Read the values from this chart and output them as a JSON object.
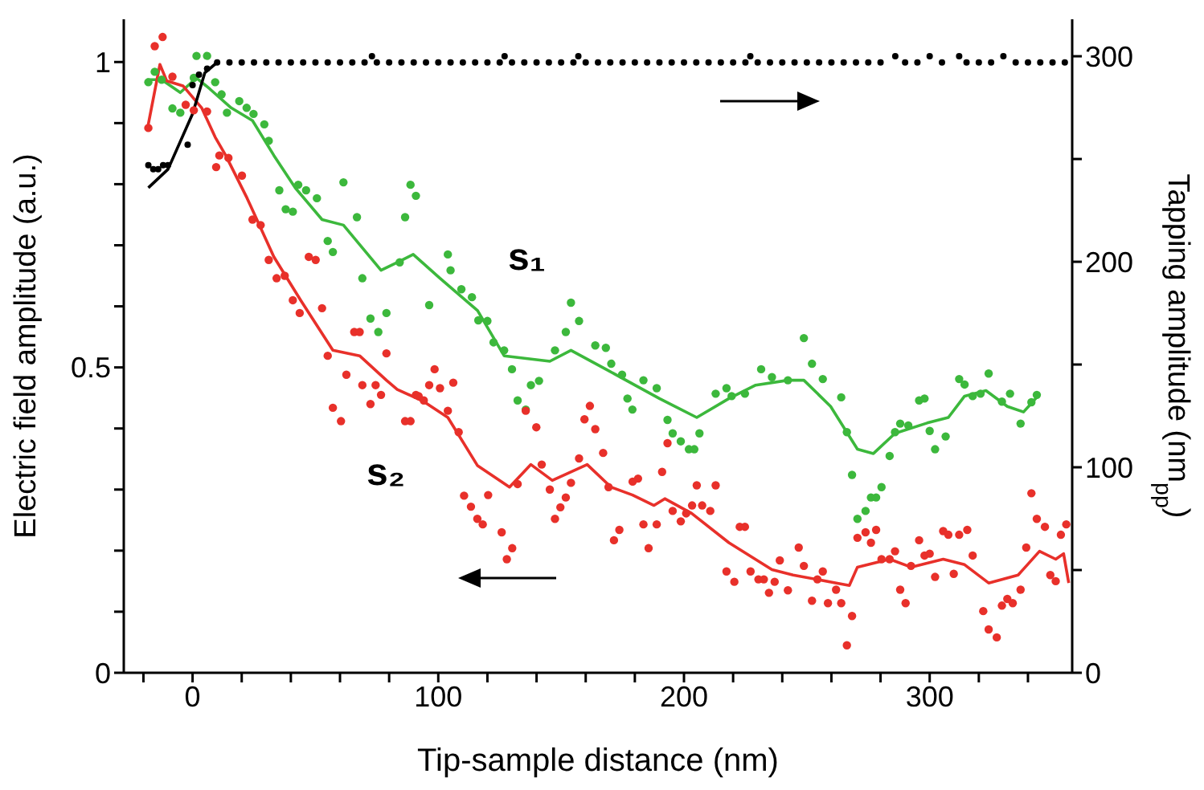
{
  "chart_data": {
    "type": "scatter",
    "xlabel": "Tip-sample distance (nm)",
    "ylabel": "Electric field amplitude (a.u.)",
    "y2label": "Tapping amplitude (nm$_{pp}$)",
    "xlim": [
      -28,
      358
    ],
    "xticks": [
      {
        "value": -20,
        "label": null
      },
      0,
      {
        "value": 20,
        "label": null
      },
      {
        "value": 40,
        "label": null
      },
      {
        "value": 60,
        "label": null
      },
      {
        "value": 80,
        "label": null
      },
      100,
      {
        "value": 120,
        "label": null
      },
      {
        "value": 140,
        "label": null
      },
      {
        "value": 160,
        "label": null
      },
      {
        "value": 180,
        "label": null
      },
      200,
      {
        "value": 220,
        "label": null
      },
      {
        "value": 240,
        "label": null
      },
      {
        "value": 260,
        "label": null
      },
      {
        "value": 280,
        "label": null
      },
      300,
      {
        "value": 320,
        "label": null
      },
      {
        "value": 340,
        "label": null
      }
    ],
    "ylim": [
      0,
      1.07
    ],
    "yticks": [
      0,
      {
        "value": 0.1,
        "label": null
      },
      {
        "value": 0.2,
        "label": null
      },
      {
        "value": 0.3,
        "label": null
      },
      {
        "value": 0.4,
        "label": null
      },
      0.5,
      {
        "value": 0.6,
        "label": null
      },
      {
        "value": 0.7,
        "label": null
      },
      {
        "value": 0.8,
        "label": null
      },
      {
        "value": 0.9,
        "label": null
      },
      1
    ],
    "y2lim": [
      0,
      318
    ],
    "y2ticks": [
      0,
      {
        "value": 50,
        "label": null
      },
      100,
      {
        "value": 150,
        "label": null
      },
      200,
      {
        "value": 250,
        "label": null
      },
      300
    ],
    "marker": "circle",
    "series": [
      {
        "name": "s₁",
        "color": "#3cb83c",
        "x": [
          -18,
          -15.4,
          -12.6,
          -8.2,
          -5,
          0.5,
          1.6,
          5.9,
          9.2,
          11.8,
          14,
          19,
          22,
          24.8,
          29.2,
          31,
          35.3,
          37.9,
          40.8,
          43,
          46.2,
          50.6,
          55,
          57.1,
          61.4,
          66.9,
          69.1,
          72.4,
          75.6,
          78.9,
          84.3,
          86.5,
          88.7,
          90.9,
          96.3,
          103.9,
          105,
          109.4,
          113.7,
          116.3,
          120,
          122.5,
          126.8,
          130,
          132.3,
          135.6,
          137.7,
          141,
          147.5,
          151.9,
          154,
          157.3,
          163.9,
          168.2,
          170.4,
          174.8,
          177,
          179,
          183.5,
          188.9,
          193.3,
          195.4,
          198.7,
          202,
          204.2,
          206.3,
          212.9,
          217.3,
          219.4,
          224.8,
          231.4,
          235.8,
          242.3,
          248.8,
          252.1,
          256.5,
          264,
          266.3,
          268.4,
          270.6,
          273.9,
          276.1,
          278.2,
          280.4,
          283.7,
          285.9,
          288,
          291.3,
          295.7,
          297.9,
          300,
          302.2,
          306.5,
          312,
          314.2,
          317.5,
          320.7,
          324,
          329.4,
          332.7,
          337,
          341.4,
          343.6
        ],
        "values": [
          0.967,
          0.984,
          0.971,
          0.924,
          0.917,
          0.974,
          1.01,
          1.01,
          0.967,
          0.947,
          0.917,
          0.936,
          0.925,
          0.915,
          0.898,
          0.871,
          0.79,
          0.759,
          0.755,
          0.799,
          0.79,
          0.777,
          0.707,
          0.689,
          0.803,
          0.746,
          0.646,
          0.58,
          0.558,
          0.589,
          0.672,
          0.746,
          0.799,
          0.781,
          0.602,
          0.685,
          0.659,
          0.628,
          0.615,
          0.577,
          0.576,
          0.541,
          0.528,
          0.497,
          0.446,
          0.431,
          0.471,
          0.478,
          0.528,
          0.558,
          0.606,
          0.576,
          0.536,
          0.532,
          0.506,
          0.488,
          0.449,
          0.431,
          0.479,
          0.466,
          0.414,
          0.392,
          0.379,
          0.366,
          0.366,
          0.392,
          0.457,
          0.466,
          0.453,
          0.457,
          0.497,
          0.484,
          0.479,
          0.548,
          0.506,
          0.481,
          0.451,
          0.394,
          0.324,
          0.252,
          0.265,
          0.287,
          0.287,
          0.304,
          0.355,
          0.394,
          0.408,
          0.405,
          0.446,
          0.449,
          0.396,
          0.366,
          0.387,
          0.481,
          0.472,
          0.453,
          0.457,
          0.49,
          0.444,
          0.457,
          0.408,
          0.443,
          0.455
        ]
      },
      {
        "type": "line",
        "color": "#3cb83c",
        "marker": "none",
        "x": [
          -18.6,
          -12.6,
          -5,
          1.6,
          7,
          15.7,
          24.4,
          33.1,
          41.8,
          52.7,
          61.4,
          76.7,
          83.3,
          89.8,
          100.7,
          116,
          126.8,
          145.4,
          154,
          168.2,
          190,
          205.2,
          218.3,
          229.2,
          242.3,
          248.8,
          259.7,
          270.6,
          277.1,
          285.9,
          299,
          307.6,
          314.2,
          322.9,
          331.6,
          338.2,
          343.6
        ],
        "values": [
          0.971,
          0.971,
          0.95,
          0.974,
          0.956,
          0.925,
          0.904,
          0.847,
          0.794,
          0.742,
          0.733,
          0.659,
          0.672,
          0.685,
          0.646,
          0.593,
          0.519,
          0.51,
          0.528,
          0.497,
          0.449,
          0.418,
          0.449,
          0.471,
          0.479,
          0.479,
          0.436,
          0.366,
          0.359,
          0.392,
          0.409,
          0.418,
          0.453,
          0.462,
          0.436,
          0.427,
          0.451
        ]
      },
      {
        "name": "s₂",
        "color": "#e8302a",
        "x": [
          -18,
          -15.4,
          -12.2,
          -8.2,
          -2.8,
          0.5,
          5.9,
          9.6,
          10.9,
          14.6,
          20.1,
          24.4,
          27.7,
          31,
          34.2,
          37.5,
          40.8,
          43.6,
          47.3,
          50.1,
          52.7,
          55,
          57.1,
          60.4,
          62.6,
          65.8,
          68,
          69.1,
          72.4,
          74.5,
          76.7,
          78.9,
          86.5,
          88.7,
          90.9,
          92,
          94.1,
          96.3,
          98.5,
          100.7,
          103.9,
          106.1,
          108.3,
          110.5,
          113.3,
          115.9,
          118.1,
          120.3,
          125.8,
          127.9,
          130.1,
          132.3,
          135.6,
          139.9,
          142.1,
          145.4,
          147.5,
          149.7,
          151.9,
          154,
          157.3,
          159.5,
          161.7,
          163.9,
          167.1,
          169.3,
          171.5,
          173.7,
          179.1,
          181.3,
          183.5,
          185.6,
          188.9,
          191.1,
          193.3,
          195.4,
          198.7,
          200.9,
          203.3,
          205.2,
          207.4,
          210.7,
          212.9,
          217.3,
          220.5,
          222.7,
          224.8,
          227.1,
          230.3,
          232.5,
          234.6,
          236.9,
          239,
          242.3,
          246.7,
          248.8,
          252.1,
          254.3,
          256.5,
          258.6,
          261.9,
          264,
          266.3,
          268.4,
          270.6,
          273.9,
          276.1,
          278.2,
          280.4,
          283.7,
          285.9,
          288,
          290.2,
          292.4,
          295.7,
          297.9,
          300,
          302.2,
          305.5,
          307.6,
          309.8,
          312,
          315.3,
          317.5,
          321.8,
          324,
          327.3,
          329.4,
          331.6,
          333.8,
          337,
          339.3,
          341.4,
          343.6,
          346.9,
          349.1,
          351.3,
          353.4,
          355.6
        ],
        "values": [
          0.892,
          1.026,
          1.041,
          0.976,
          0.93,
          0.921,
          0.919,
          0.828,
          0.847,
          0.843,
          0.814,
          0.742,
          0.733,
          0.676,
          0.646,
          0.65,
          0.61,
          0.589,
          0.681,
          0.676,
          0.597,
          0.519,
          0.434,
          0.412,
          0.488,
          0.558,
          0.558,
          0.471,
          0.44,
          0.471,
          0.455,
          0.523,
          0.412,
          0.412,
          0.455,
          0.453,
          0.446,
          0.471,
          0.497,
          0.466,
          0.429,
          0.475,
          0.394,
          0.29,
          0.272,
          0.252,
          0.243,
          0.291,
          0.23,
          0.186,
          0.204,
          0.309,
          0.429,
          0.402,
          0.341,
          0.3,
          0.252,
          0.271,
          0.287,
          0.311,
          0.351,
          0.415,
          0.437,
          0.399,
          0.36,
          0.304,
          0.217,
          0.234,
          0.313,
          0.318,
          0.243,
          0.204,
          0.243,
          0.329,
          0.376,
          0.265,
          0.248,
          0.261,
          0.274,
          0.307,
          0.274,
          0.265,
          0.307,
          0.166,
          0.149,
          0.239,
          0.239,
          0.166,
          0.153,
          0.153,
          0.131,
          0.149,
          0.184,
          0.135,
          0.205,
          0.175,
          0.118,
          0.153,
          0.166,
          0.114,
          0.136,
          0.114,
          0.045,
          0.093,
          0.221,
          0.23,
          0.213,
          0.234,
          0.186,
          0.186,
          0.199,
          0.136,
          0.114,
          0.175,
          0.217,
          0.192,
          0.195,
          0.157,
          0.232,
          0.226,
          0.162,
          0.226,
          0.234,
          0.192,
          0.101,
          0.071,
          0.058,
          0.11,
          0.121,
          0.114,
          0.136,
          0.205,
          0.294,
          0.252,
          0.239,
          0.16,
          0.15,
          0.226,
          0.243
        ]
      },
      {
        "type": "line",
        "color": "#e8302a",
        "marker": "none",
        "x": [
          -18.3,
          -13.3,
          -10.5,
          -3.9,
          3.7,
          9.2,
          13.5,
          22.2,
          33.1,
          44,
          57.1,
          68,
          78.9,
          83.3,
          94.1,
          103.9,
          116,
          129,
          137.7,
          146.4,
          160.6,
          170.3,
          179.1,
          187.8,
          192.2,
          203.1,
          218.3,
          235.8,
          244.4,
          262,
          267.3,
          270.6,
          283.7,
          292.4,
          305.5,
          314.2,
          324,
          336,
          344.7,
          351.3,
          354.5,
          356.6
        ],
        "values": [
          0.892,
          0.996,
          0.969,
          0.961,
          0.925,
          0.877,
          0.847,
          0.777,
          0.681,
          0.61,
          0.528,
          0.519,
          0.479,
          0.464,
          0.444,
          0.418,
          0.339,
          0.304,
          0.341,
          0.315,
          0.341,
          0.304,
          0.291,
          0.274,
          0.285,
          0.261,
          0.213,
          0.169,
          0.16,
          0.147,
          0.143,
          0.173,
          0.186,
          0.173,
          0.186,
          0.177,
          0.147,
          0.16,
          0.199,
          0.186,
          0.195,
          0.147
        ]
      },
      {
        "axis": "y2",
        "color": "#000000",
        "x": [
          -18,
          -16,
          -14,
          -12,
          -10,
          -2,
          0,
          2.6,
          5.9,
          10,
          15,
          20,
          25,
          30,
          35,
          40,
          45,
          50,
          55,
          60,
          65,
          70,
          73,
          75,
          80,
          85,
          90,
          95,
          100,
          105,
          110,
          115,
          120,
          125,
          127,
          130,
          135,
          140,
          145,
          150,
          155,
          157,
          160,
          165,
          170,
          175,
          180,
          185,
          190,
          195,
          200,
          205,
          210,
          215,
          220,
          225,
          227,
          230,
          235,
          240,
          245,
          250,
          255,
          260,
          265,
          270,
          275,
          280,
          286,
          290,
          295,
          300,
          305,
          312,
          315,
          320,
          325,
          330,
          335,
          340,
          345,
          350,
          355
        ],
        "values": [
          247,
          245,
          245,
          247,
          247,
          257,
          286,
          291,
          294,
          297,
          297,
          297,
          297,
          297,
          297,
          297,
          297,
          297,
          297,
          297,
          297,
          297,
          300,
          297,
          297,
          297,
          297,
          297,
          297,
          297,
          297,
          297,
          297,
          297,
          300,
          297,
          297,
          297,
          297,
          297,
          297,
          300,
          297,
          297,
          297,
          297,
          297,
          297,
          297,
          297,
          297,
          297,
          297,
          297,
          297,
          297,
          300,
          297,
          297,
          297,
          297,
          297,
          297,
          297,
          297,
          297,
          297,
          297,
          300,
          297,
          297,
          300,
          297,
          300,
          297,
          297,
          297,
          300,
          297,
          297,
          297,
          297,
          297
        ]
      },
      {
        "type": "line",
        "axis": "y2",
        "color": "#000000",
        "marker": "none",
        "x": [
          -18,
          -10,
          0,
          5,
          10
        ],
        "values": [
          236,
          245,
          272,
          292,
          297
        ]
      }
    ]
  }
}
